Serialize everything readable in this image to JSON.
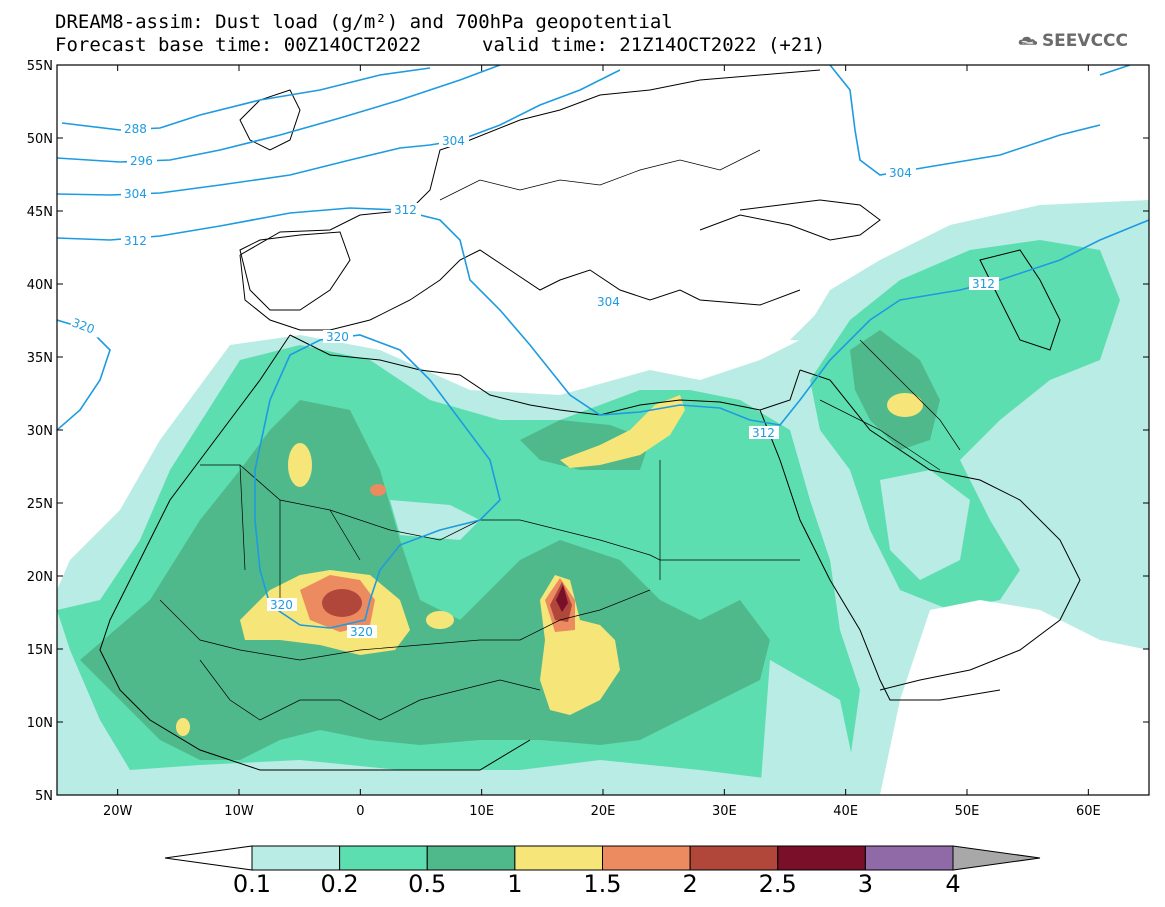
{
  "title": {
    "line1": "DREAM8-assim: Dust load (g/m²) and 700hPa geopotential",
    "line2_left": "Forecast base time: 00Z14OCT2022",
    "line2_right": "valid time: 21Z14OCT2022 (+21)"
  },
  "logo": {
    "text": "SEEVCCC",
    "icon": "cloud-icon"
  },
  "map": {
    "lat_labels": [
      "55N",
      "50N",
      "45N",
      "40N",
      "35N",
      "30N",
      "25N",
      "20N",
      "15N",
      "10N",
      "5N"
    ],
    "lon_labels": [
      "20W",
      "10W",
      "0",
      "10E",
      "20E",
      "30E",
      "40E",
      "50E",
      "60E"
    ],
    "extent": {
      "lon": [
        -25,
        65
      ],
      "lat": [
        5,
        55
      ]
    },
    "contour_color": "#1e9be0",
    "contours": [
      {
        "label": "288"
      },
      {
        "label": "296"
      },
      {
        "label": "304"
      },
      {
        "label": "312"
      },
      {
        "label": "320"
      },
      {
        "label": "304"
      },
      {
        "label": "304"
      },
      {
        "label": "312"
      },
      {
        "label": "304"
      },
      {
        "label": "312"
      },
      {
        "label": "320"
      },
      {
        "label": "312"
      },
      {
        "label": "320"
      },
      {
        "label": "320"
      }
    ]
  },
  "colorbar": {
    "levels": [
      "0.1",
      "0.2",
      "0.5",
      "1",
      "1.5",
      "2",
      "2.5",
      "3",
      "4"
    ],
    "colors": [
      "#ffffff",
      "#b9ece4",
      "#5ddeb0",
      "#4fb98c",
      "#f6e67a",
      "#ec8a60",
      "#b0473a",
      "#7a0f2a",
      "#8f6aa6",
      "#a8a8a8"
    ]
  }
}
